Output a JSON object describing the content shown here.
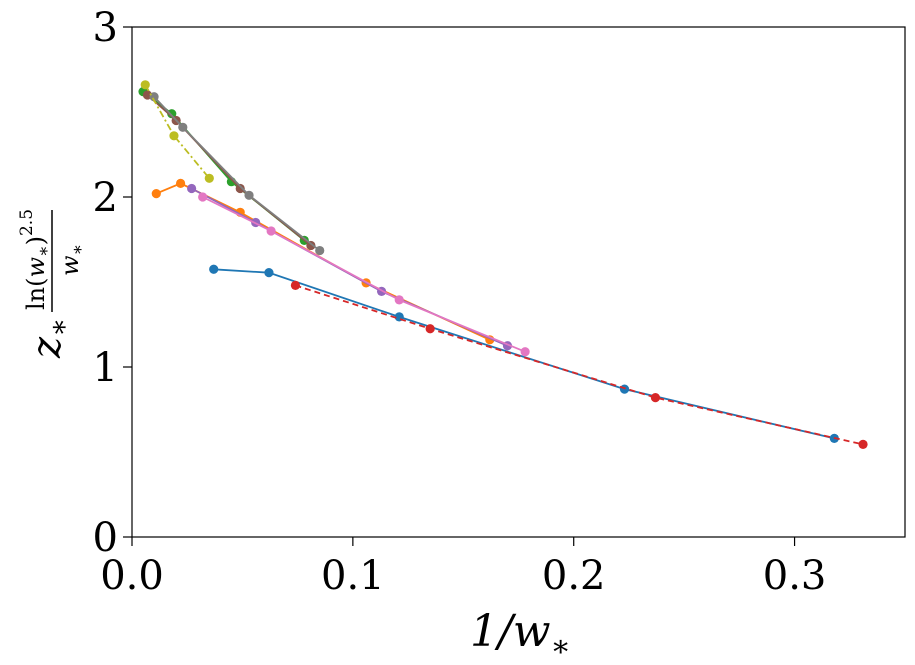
{
  "chart_data": {
    "type": "line",
    "xlabel": "1/w*",
    "ylabel": "z* ln(w*)^2.5 / w*",
    "xlim": [
      0,
      0.35
    ],
    "ylim": [
      0,
      3
    ],
    "xticks": [
      0.0,
      0.1,
      0.2,
      0.3
    ],
    "xtick_labels": [
      "0.0",
      "0.1",
      "0.2",
      "0.3"
    ],
    "yticks": [
      0,
      1,
      2,
      3
    ],
    "ytick_labels": [
      "0",
      "1",
      "2",
      "3"
    ],
    "grid": false,
    "legend": "none",
    "series": [
      {
        "color": "#1f77b4",
        "dash": "solid",
        "x": [
          0.037,
          0.062,
          0.121,
          0.223,
          0.318
        ],
        "y": [
          1.575,
          1.555,
          1.295,
          0.87,
          0.58
        ]
      },
      {
        "color": "#ff7f0e",
        "dash": "solid",
        "x": [
          0.011,
          0.022,
          0.049,
          0.106,
          0.162
        ],
        "y": [
          2.02,
          2.08,
          1.91,
          1.495,
          1.16
        ]
      },
      {
        "color": "#2ca02c",
        "dash": "solid",
        "x": [
          0.005,
          0.018,
          0.045,
          0.078
        ],
        "y": [
          2.62,
          2.49,
          2.09,
          1.745
        ]
      },
      {
        "color": "#d62728",
        "dash": "dashed",
        "x": [
          0.074,
          0.135,
          0.237,
          0.331
        ],
        "y": [
          1.48,
          1.225,
          0.82,
          0.545
        ]
      },
      {
        "color": "#9467bd",
        "dash": "solid",
        "x": [
          0.027,
          0.056,
          0.113,
          0.17
        ],
        "y": [
          2.05,
          1.85,
          1.445,
          1.125
        ]
      },
      {
        "color": "#8c564b",
        "dash": "solid",
        "x": [
          0.007,
          0.02,
          0.049,
          0.081
        ],
        "y": [
          2.6,
          2.45,
          2.05,
          1.715
        ]
      },
      {
        "color": "#e377c2",
        "dash": "solid",
        "x": [
          0.032,
          0.063,
          0.121,
          0.178
        ],
        "y": [
          2.0,
          1.8,
          1.395,
          1.09
        ]
      },
      {
        "color": "#7f7f7f",
        "dash": "solid",
        "x": [
          0.01,
          0.023,
          0.053,
          0.085
        ],
        "y": [
          2.59,
          2.41,
          2.01,
          1.685
        ]
      },
      {
        "color": "#bcbd22",
        "dash": "dashdot",
        "x": [
          0.006,
          0.019,
          0.035
        ],
        "y": [
          2.66,
          2.36,
          2.11
        ]
      }
    ]
  }
}
